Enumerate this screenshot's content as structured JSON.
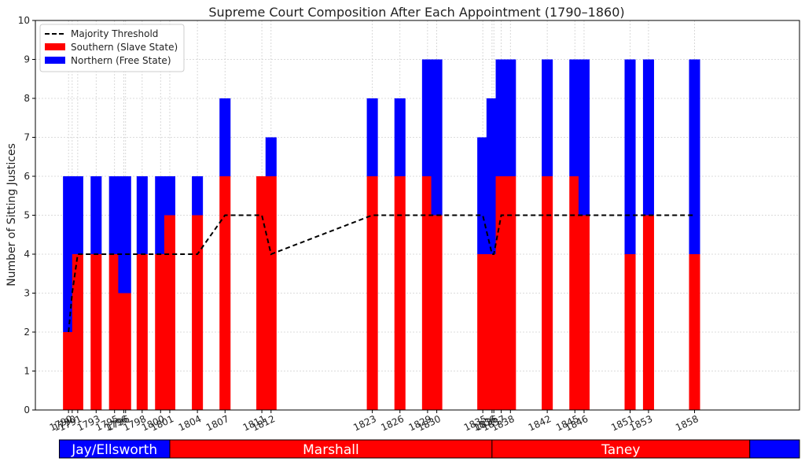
{
  "chart_data": {
    "type": "bar",
    "stacked": true,
    "title": "Supreme Court Composition After Each Appointment (1790–1860)",
    "ylabel": "Number of Sitting Justices",
    "xlabel": "",
    "ylim": [
      0,
      10
    ],
    "xlim": [
      1786.4,
      1869.4
    ],
    "yticks": [
      0,
      1,
      2,
      3,
      4,
      5,
      6,
      7,
      8,
      9,
      10
    ],
    "grid": true,
    "legend_position": "top-left",
    "bar_width_years": 1.2,
    "colors": {
      "southern": "#ff0000",
      "northern": "#0000ff",
      "threshold": "#000000",
      "grid": "#cfcfcf"
    },
    "legend": [
      {
        "label": "Majority Threshold",
        "kind": "dashed-line",
        "color": "#000000"
      },
      {
        "label": "Southern (Slave State)",
        "kind": "patch",
        "color": "#ff0000"
      },
      {
        "label": "Northern (Free State)",
        "kind": "patch",
        "color": "#0000ff"
      }
    ],
    "x": [
      1790,
      1790.4,
      1791,
      1793,
      1795,
      1796,
      1796.2,
      1798,
      1800,
      1801,
      1804,
      1807,
      1811,
      1812,
      1823,
      1826,
      1829,
      1830,
      1835,
      1836,
      1836.2,
      1837,
      1838,
      1842,
      1845,
      1846,
      1851,
      1853,
      1858
    ],
    "x_tick_labels": [
      "1790",
      "1790",
      "1791",
      "1793",
      "1795",
      "1796",
      "1796",
      "1798",
      "1800",
      "1801",
      "1804",
      "1807",
      "1811",
      "1812",
      "1823",
      "1826",
      "1829",
      "1830",
      "1835",
      "1836",
      "1836",
      "1837",
      "1838",
      "1842",
      "1845",
      "1846",
      "1851",
      "1853",
      "1858"
    ],
    "series": [
      {
        "name": "Southern (Slave State)",
        "values": [
          2,
          2,
          4,
          4,
          4,
          3,
          3,
          4,
          4,
          5,
          5,
          6,
          6,
          6,
          6,
          6,
          6,
          5,
          4,
          4,
          4,
          6,
          6,
          6,
          6,
          5,
          4,
          5,
          4
        ]
      },
      {
        "name": "Northern (Free State)",
        "values": [
          4,
          4,
          2,
          2,
          2,
          3,
          3,
          2,
          2,
          1,
          1,
          2,
          0,
          1,
          2,
          2,
          3,
          4,
          3,
          4,
          4,
          3,
          3,
          3,
          3,
          4,
          5,
          4,
          5
        ]
      },
      {
        "name": "Majority Threshold",
        "type": "line",
        "style": "dashed",
        "x": [
          1790,
          1790.4,
          1791,
          1793,
          1795,
          1796,
          1796.2,
          1798,
          1800,
          1801,
          1804,
          1807,
          1811,
          1812,
          1823,
          1826,
          1829,
          1830,
          1835,
          1836,
          1836.2,
          1837,
          1838,
          1842,
          1845,
          1846,
          1851,
          1853,
          1858
        ],
        "values": [
          2,
          3,
          4,
          4,
          4,
          4,
          4,
          4,
          4,
          4,
          4,
          5,
          5,
          4,
          5,
          5,
          5,
          5,
          5,
          4,
          4,
          5,
          5,
          5,
          5,
          5,
          5,
          5,
          5
        ]
      }
    ],
    "eras": [
      {
        "label": "Jay/Ellsworth",
        "start": 1789.0,
        "end": 1801.0,
        "color": "#0000ff"
      },
      {
        "label": "Marshall",
        "start": 1801.0,
        "end": 1836.0,
        "color": "#ff0000"
      },
      {
        "label": "Taney",
        "start": 1836.0,
        "end": 1864.0,
        "color": "#ff0000"
      },
      {
        "label": "",
        "start": 1864.0,
        "end": 1869.4,
        "color": "#0000ff"
      }
    ]
  }
}
